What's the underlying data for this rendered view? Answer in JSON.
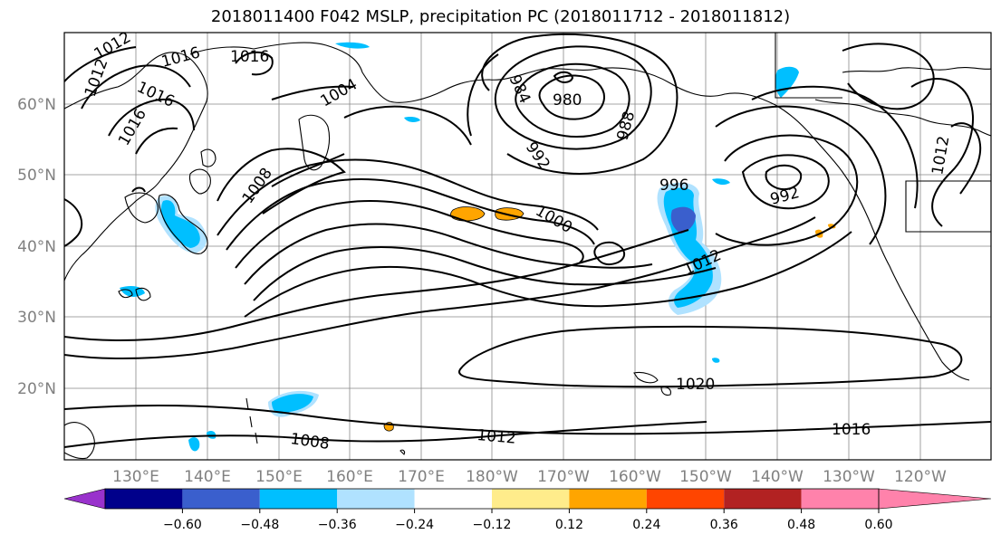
{
  "title": "2018011400 F042 MSLP, precipitation PC (2018011712 - 2018011812)",
  "map": {
    "lat_labels": [
      "60°N",
      "50°N",
      "40°N",
      "30°N",
      "20°N"
    ],
    "lon_labels": [
      "130°E",
      "140°E",
      "150°E",
      "160°E",
      "170°E",
      "180°W",
      "170°W",
      "160°W",
      "150°W",
      "140°W",
      "130°W",
      "120°W"
    ],
    "isobar_labels": [
      "1012",
      "1016",
      "1016",
      "1016",
      "1012",
      "1016",
      "1004",
      "984",
      "980",
      "988",
      "992",
      "1008",
      "1000",
      "996",
      "992",
      "1012",
      "1020",
      "1008",
      "1012",
      "1016",
      "1012"
    ],
    "contour_color": "#000000",
    "coast_color": "#000000",
    "grid_color": "#888888"
  },
  "colorbar": {
    "ticks": [
      "−0.60",
      "−0.48",
      "−0.36",
      "−0.24",
      "−0.12",
      "0.12",
      "0.24",
      "0.36",
      "0.48",
      "0.60"
    ],
    "colors": [
      "#9932cc",
      "#00008b",
      "#3a5fcd",
      "#00bfff",
      "#b0e2ff",
      "#ffffff",
      "#ffec8b",
      "#ffa500",
      "#ff4500",
      "#b22222",
      "#ff82ab"
    ]
  }
}
